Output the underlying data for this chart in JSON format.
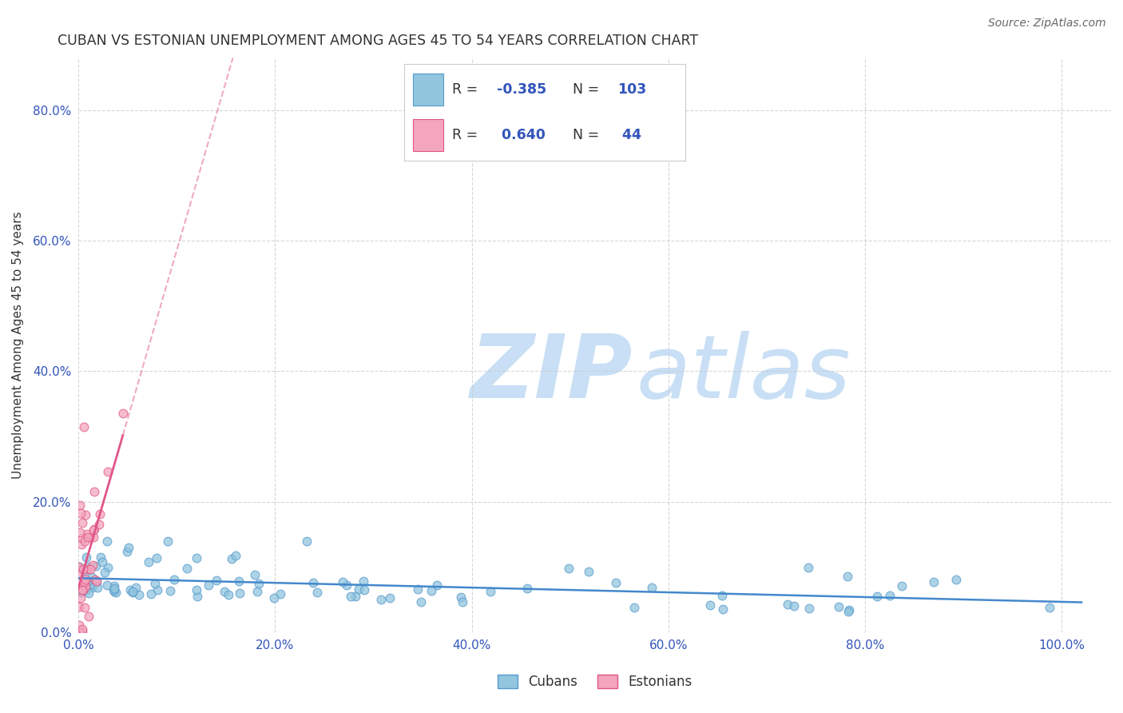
{
  "title": "CUBAN VS ESTONIAN UNEMPLOYMENT AMONG AGES 45 TO 54 YEARS CORRELATION CHART",
  "source": "Source: ZipAtlas.com",
  "ylabel": "Unemployment Among Ages 45 to 54 years",
  "xlim": [
    0.0,
    1.05
  ],
  "ylim": [
    0.0,
    0.88
  ],
  "yticks": [
    0.0,
    0.2,
    0.4,
    0.6,
    0.8
  ],
  "xticks": [
    0.0,
    0.2,
    0.4,
    0.6,
    0.8,
    1.0
  ],
  "cuban_R": -0.385,
  "cuban_N": 103,
  "estonian_R": 0.64,
  "estonian_N": 44,
  "cuban_color": "#92c5de",
  "cuban_edge_color": "#5599cc",
  "estonian_color": "#f4a6be",
  "estonian_edge_color": "#e05580",
  "trend_cuban_color": "#4488cc",
  "trend_estonian_color": "#e0558a",
  "background_color": "#ffffff",
  "grid_color": "#cccccc",
  "title_color": "#333333",
  "axis_color": "#3355bb",
  "watermark_zip": "ZIP",
  "watermark_atlas": "atlas",
  "watermark_color": "#c8dff5",
  "watermark_fontsize": 80
}
